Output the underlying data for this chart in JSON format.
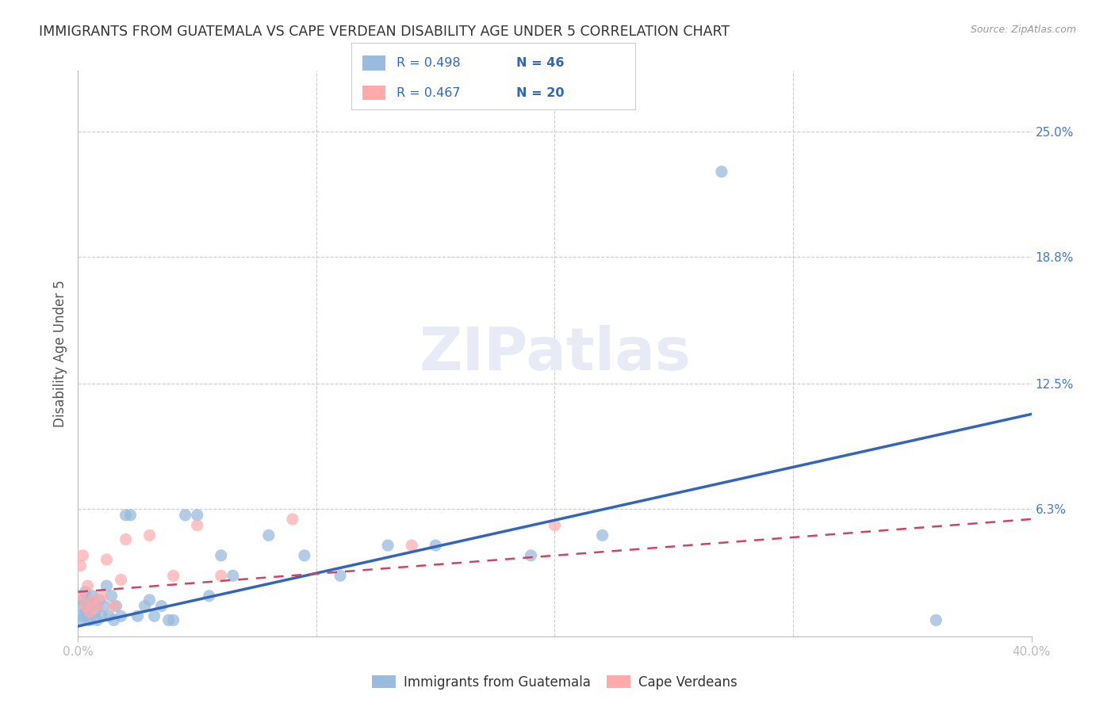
{
  "title": "IMMIGRANTS FROM GUATEMALA VS CAPE VERDEAN DISABILITY AGE UNDER 5 CORRELATION CHART",
  "source": "Source: ZipAtlas.com",
  "ylabel": "Disability Age Under 5",
  "legend_label_1": "Immigrants from Guatemala",
  "legend_label_2": "Cape Verdeans",
  "legend_r1": "R = 0.498",
  "legend_n1": "N = 46",
  "legend_r2": "R = 0.467",
  "legend_n2": "N = 20",
  "xmin": 0.0,
  "xmax": 0.4,
  "ymin": 0.0,
  "ymax": 0.28,
  "right_ytick_vals": [
    0.063,
    0.125,
    0.188,
    0.25
  ],
  "right_yticklabels": [
    "6.3%",
    "12.5%",
    "18.8%",
    "25.0%"
  ],
  "color_blue": "#99BBDD",
  "color_blue_line": "#3366BB",
  "color_pink": "#FFAAAA",
  "color_pink_line": "#CC4466",
  "background_color": "#FFFFFF",
  "grid_color": "#CCCCCC",
  "watermark_text": "ZIPatlas",
  "watermark_color": "#E8EBF5",
  "blue_line_x0": 0.0,
  "blue_line_y0": 0.005,
  "blue_line_x1": 0.4,
  "blue_line_y1": 0.11,
  "pink_line_x0": 0.0,
  "pink_line_y0": 0.022,
  "pink_line_x1": 0.4,
  "pink_line_y1": 0.058,
  "blue_points_x": [
    0.001,
    0.001,
    0.002,
    0.002,
    0.003,
    0.003,
    0.004,
    0.004,
    0.005,
    0.005,
    0.006,
    0.007,
    0.008,
    0.008,
    0.009,
    0.01,
    0.011,
    0.012,
    0.013,
    0.014,
    0.015,
    0.016,
    0.018,
    0.02,
    0.022,
    0.025,
    0.028,
    0.03,
    0.032,
    0.035,
    0.038,
    0.04,
    0.045,
    0.05,
    0.055,
    0.06,
    0.065,
    0.08,
    0.095,
    0.11,
    0.13,
    0.15,
    0.19,
    0.22,
    0.27,
    0.36
  ],
  "blue_points_y": [
    0.008,
    0.015,
    0.01,
    0.018,
    0.012,
    0.022,
    0.01,
    0.018,
    0.008,
    0.015,
    0.02,
    0.012,
    0.008,
    0.015,
    0.018,
    0.01,
    0.015,
    0.025,
    0.01,
    0.02,
    0.008,
    0.015,
    0.01,
    0.06,
    0.06,
    0.01,
    0.015,
    0.018,
    0.01,
    0.015,
    0.008,
    0.008,
    0.06,
    0.06,
    0.02,
    0.04,
    0.03,
    0.05,
    0.04,
    0.03,
    0.045,
    0.045,
    0.04,
    0.05,
    0.23,
    0.008
  ],
  "pink_points_x": [
    0.001,
    0.001,
    0.002,
    0.003,
    0.004,
    0.005,
    0.006,
    0.008,
    0.01,
    0.012,
    0.015,
    0.018,
    0.02,
    0.03,
    0.04,
    0.05,
    0.06,
    0.09,
    0.14,
    0.2
  ],
  "pink_points_y": [
    0.02,
    0.035,
    0.04,
    0.015,
    0.025,
    0.012,
    0.018,
    0.015,
    0.02,
    0.038,
    0.015,
    0.028,
    0.048,
    0.05,
    0.03,
    0.055,
    0.03,
    0.058,
    0.045,
    0.055
  ]
}
